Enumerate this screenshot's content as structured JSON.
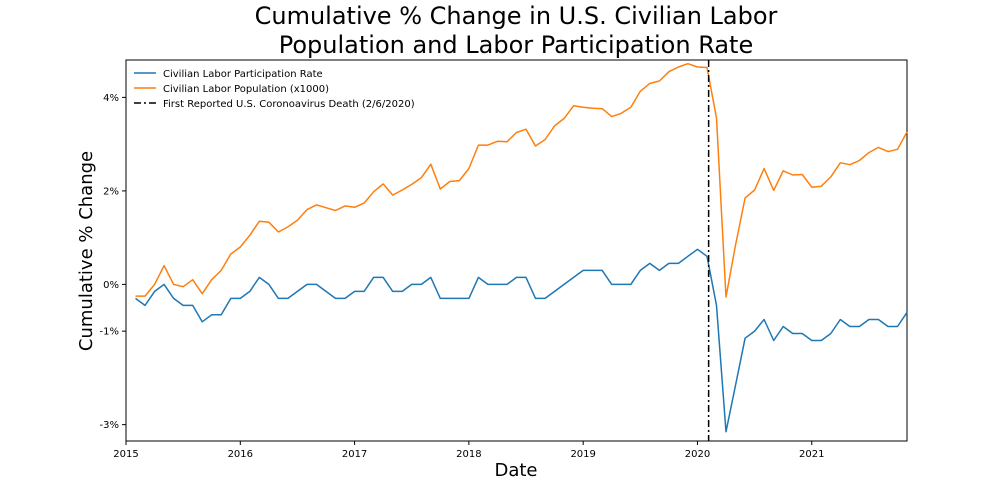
{
  "chart_data": {
    "type": "line",
    "title_lines": [
      "Cumulative % Change in U.S. Civilian Labor",
      "Population and Labor Participation Rate"
    ],
    "xlabel": "Date",
    "ylabel": "Cumulative % Change",
    "x_tick_labels": [
      "2015",
      "2016",
      "2017",
      "2018",
      "2019",
      "2020",
      "2021"
    ],
    "y_tick_labels": [
      "-3%",
      "-1%",
      "0%",
      "2%",
      "4%"
    ],
    "y_tick_values": [
      -3,
      -1,
      0,
      2,
      4
    ],
    "xlim": [
      "2015-01",
      "2021-11"
    ],
    "ylim": [
      -3.35,
      4.8
    ],
    "grid": false,
    "legend_position": "top-left",
    "x": [
      "2015-02",
      "2015-03",
      "2015-04",
      "2015-05",
      "2015-06",
      "2015-07",
      "2015-08",
      "2015-09",
      "2015-10",
      "2015-11",
      "2015-12",
      "2016-01",
      "2016-02",
      "2016-03",
      "2016-04",
      "2016-05",
      "2016-06",
      "2016-07",
      "2016-08",
      "2016-09",
      "2016-10",
      "2016-11",
      "2016-12",
      "2017-01",
      "2017-02",
      "2017-03",
      "2017-04",
      "2017-05",
      "2017-06",
      "2017-07",
      "2017-08",
      "2017-09",
      "2017-10",
      "2017-11",
      "2017-12",
      "2018-01",
      "2018-02",
      "2018-03",
      "2018-04",
      "2018-05",
      "2018-06",
      "2018-07",
      "2018-08",
      "2018-09",
      "2018-10",
      "2018-11",
      "2018-12",
      "2019-01",
      "2019-02",
      "2019-03",
      "2019-04",
      "2019-05",
      "2019-06",
      "2019-07",
      "2019-08",
      "2019-09",
      "2019-10",
      "2019-11",
      "2019-12",
      "2020-01",
      "2020-02",
      "2020-03",
      "2020-04",
      "2020-05",
      "2020-06",
      "2020-07",
      "2020-08",
      "2020-09",
      "2020-10",
      "2020-11",
      "2020-12",
      "2021-01",
      "2021-02",
      "2021-03",
      "2021-04",
      "2021-05",
      "2021-06",
      "2021-07",
      "2021-08",
      "2021-09",
      "2021-10",
      "2021-11"
    ],
    "series": [
      {
        "name": "Civilian Labor Participation Rate",
        "color": "#1f77b4",
        "values": [
          -0.3,
          -0.45,
          -0.15,
          0,
          -0.3,
          -0.45,
          -0.45,
          -0.8,
          -0.65,
          -0.65,
          -0.3,
          -0.3,
          -0.15,
          0.15,
          0,
          -0.3,
          -0.3,
          -0.15,
          0,
          0,
          -0.15,
          -0.3,
          -0.3,
          -0.15,
          -0.15,
          0.15,
          0.15,
          -0.15,
          -0.15,
          0,
          0,
          0.15,
          -0.3,
          -0.3,
          -0.3,
          -0.3,
          0.15,
          0,
          0,
          0,
          0.15,
          0.15,
          -0.3,
          -0.3,
          -0.15,
          0,
          0.15,
          0.3,
          0.3,
          0.3,
          0,
          0,
          0,
          0.3,
          0.45,
          0.3,
          0.45,
          0.45,
          0.6,
          0.75,
          0.6,
          -0.45,
          -3.15,
          -2.15,
          -1.15,
          -1.0,
          -0.75,
          -1.2,
          -0.9,
          -1.05,
          -1.05,
          -1.2,
          -1.2,
          -1.05,
          -0.75,
          -0.9,
          -0.9,
          -0.75,
          -0.75,
          -0.9,
          -0.9,
          -0.6
        ]
      },
      {
        "name": "Civilian Labor Population (x1000)",
        "color": "#ff7f0e",
        "values": [
          -0.25,
          -0.25,
          0,
          0.4,
          0,
          -0.05,
          0.1,
          -0.2,
          0.1,
          0.3,
          0.65,
          0.8,
          1.05,
          1.35,
          1.33,
          1.12,
          1.23,
          1.37,
          1.6,
          1.7,
          1.64,
          1.58,
          1.68,
          1.65,
          1.74,
          1.98,
          2.15,
          1.91,
          2.02,
          2.14,
          2.28,
          2.57,
          2.04,
          2.2,
          2.22,
          2.48,
          2.98,
          2.98,
          3.06,
          3.05,
          3.25,
          3.32,
          2.96,
          3.1,
          3.39,
          3.55,
          3.82,
          3.79,
          3.77,
          3.76,
          3.59,
          3.66,
          3.79,
          4.13,
          4.3,
          4.35,
          4.55,
          4.65,
          4.72,
          4.65,
          4.64,
          3.56,
          -0.27,
          0.85,
          1.85,
          2.02,
          2.48,
          2.01,
          2.43,
          2.34,
          2.35,
          2.08,
          2.1,
          2.3,
          2.6,
          2.56,
          2.65,
          2.82,
          2.93,
          2.84,
          2.89,
          3.26
        ]
      }
    ],
    "vline": {
      "x": "2020-02-06",
      "label": "First Reported U.S. Coronoavirus Death (2/6/2020)",
      "color": "#000000",
      "style": "dashdot"
    }
  }
}
